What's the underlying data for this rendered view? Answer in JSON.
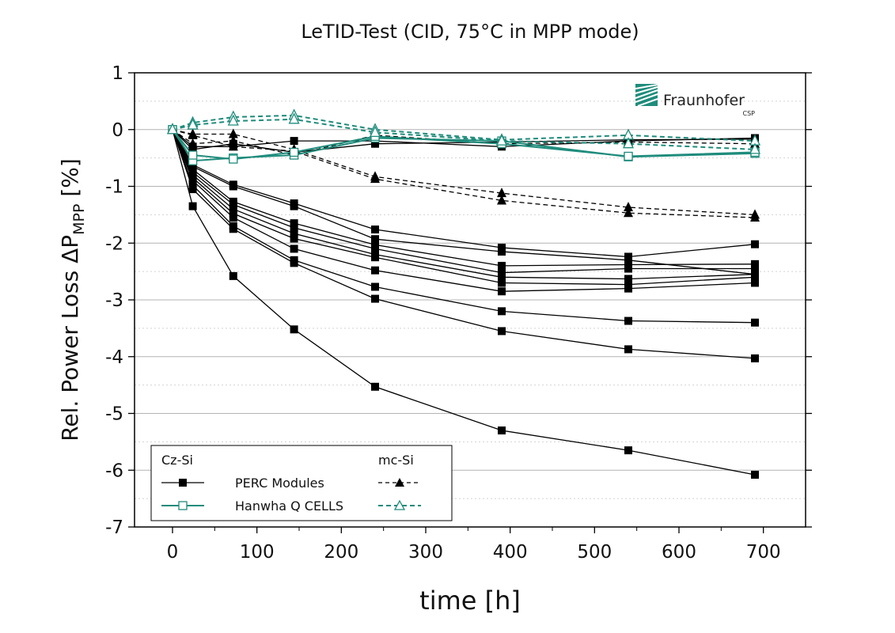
{
  "colors": {
    "black": "#000000",
    "teal": "#1f8c7c",
    "grid": "#c8c8c8",
    "frame": "#000000"
  },
  "logo": {
    "name": "Fraunhofer",
    "sub": "CSP",
    "icon": "fraunhofer-logo-icon"
  },
  "legend": {
    "header_left": "Cz-Si",
    "header_right": "mc-Si",
    "row1_label": "PERC Modules",
    "row2_label": "Hanwha Q CELLS"
  },
  "chart_data": {
    "type": "line",
    "title": "LeTID-Test (CID, 75°C in MPP mode)",
    "xlabel": "time [h]",
    "ylabel": {
      "main": "Rel. Power Loss ΔP",
      "subscript": "MPP",
      "unit": " [%]"
    },
    "xlim": [
      -45,
      750
    ],
    "ylim": [
      -7,
      1
    ],
    "xticks": [
      0,
      100,
      200,
      300,
      400,
      500,
      600,
      700
    ],
    "yticks": [
      1,
      0,
      -1,
      -2,
      -3,
      -4,
      -5,
      -6,
      -7
    ],
    "grid": true,
    "legend_position": "bottom-left",
    "series": [
      {
        "group": "PERC Cz-Si",
        "color": "#000000",
        "dash": false,
        "marker": "square-filled",
        "x": [
          0,
          24,
          72,
          144,
          240,
          390,
          540,
          690
        ],
        "y": [
          0,
          -1.35,
          -2.58,
          -3.52,
          -4.53,
          -5.3,
          -5.65,
          -6.08
        ]
      },
      {
        "group": "PERC Cz-Si",
        "color": "#000000",
        "dash": false,
        "marker": "square-filled",
        "x": [
          0,
          24,
          72,
          144,
          240,
          390,
          540,
          690
        ],
        "y": [
          0,
          -1.05,
          -1.75,
          -2.35,
          -2.98,
          -3.55,
          -3.87,
          -4.03
        ]
      },
      {
        "group": "PERC Cz-Si",
        "color": "#000000",
        "dash": false,
        "marker": "square-filled",
        "x": [
          0,
          24,
          72,
          144,
          240,
          390,
          540,
          690
        ],
        "y": [
          0,
          -0.98,
          -1.7,
          -2.3,
          -2.77,
          -3.2,
          -3.37,
          -3.4
        ]
      },
      {
        "group": "PERC Cz-Si",
        "color": "#000000",
        "dash": false,
        "marker": "square-filled",
        "x": [
          0,
          24,
          72,
          144,
          240,
          390,
          540,
          690
        ],
        "y": [
          0,
          -0.9,
          -1.55,
          -2.1,
          -2.48,
          -2.85,
          -2.8,
          -2.7
        ]
      },
      {
        "group": "PERC Cz-Si",
        "color": "#000000",
        "dash": false,
        "marker": "square-filled",
        "x": [
          0,
          24,
          72,
          144,
          240,
          390,
          540,
          690
        ],
        "y": [
          0,
          -0.85,
          -1.48,
          -1.92,
          -2.25,
          -2.7,
          -2.73,
          -2.6
        ]
      },
      {
        "group": "PERC Cz-Si",
        "color": "#000000",
        "dash": false,
        "marker": "square-filled",
        "x": [
          0,
          24,
          72,
          144,
          240,
          390,
          540,
          690
        ],
        "y": [
          0,
          -0.8,
          -1.4,
          -1.83,
          -2.2,
          -2.6,
          -2.63,
          -2.55
        ]
      },
      {
        "group": "PERC Cz-Si",
        "color": "#000000",
        "dash": false,
        "marker": "square-filled",
        "x": [
          0,
          24,
          72,
          144,
          240,
          390,
          540,
          690
        ],
        "y": [
          0,
          -0.75,
          -1.32,
          -1.73,
          -2.1,
          -2.52,
          -2.45,
          -2.45
        ]
      },
      {
        "group": "PERC Cz-Si",
        "color": "#000000",
        "dash": false,
        "marker": "square-filled",
        "x": [
          0,
          24,
          72,
          144,
          240,
          390,
          540,
          690
        ],
        "y": [
          0,
          -0.7,
          -1.27,
          -1.65,
          -2.03,
          -2.4,
          -2.38,
          -2.37
        ]
      },
      {
        "group": "PERC Cz-Si",
        "color": "#000000",
        "dash": false,
        "marker": "square-filled",
        "x": [
          0,
          24,
          72,
          144,
          240,
          390,
          540,
          690
        ],
        "y": [
          0,
          -0.65,
          -1.0,
          -1.35,
          -1.93,
          -2.15,
          -2.3,
          -2.55
        ]
      },
      {
        "group": "PERC Cz-Si",
        "color": "#000000",
        "dash": false,
        "marker": "square-filled",
        "x": [
          0,
          24,
          72,
          144,
          240,
          390,
          540,
          690
        ],
        "y": [
          0,
          -0.62,
          -0.97,
          -1.3,
          -1.76,
          -2.08,
          -2.24,
          -2.02
        ]
      },
      {
        "group": "PERC Cz-Si",
        "color": "#000000",
        "dash": false,
        "marker": "square-filled",
        "x": [
          0,
          24,
          72,
          144,
          240,
          390,
          540,
          690
        ],
        "y": [
          0,
          -0.3,
          -0.3,
          -0.2,
          -0.2,
          -0.3,
          -0.2,
          -0.15
        ]
      },
      {
        "group": "PERC Cz-Si",
        "color": "#000000",
        "dash": false,
        "marker": "square-filled",
        "x": [
          0,
          24,
          72,
          144,
          240,
          390,
          540,
          690
        ],
        "y": [
          0,
          -0.35,
          -0.25,
          -0.4,
          -0.25,
          -0.22,
          -0.18,
          -0.17
        ]
      },
      {
        "group": "PERC mc-Si",
        "color": "#000000",
        "dash": true,
        "marker": "triangle-filled",
        "x": [
          0,
          24,
          72,
          144,
          240,
          390,
          540,
          690
        ],
        "y": [
          0,
          -0.08,
          -0.08,
          -0.35,
          -0.83,
          -1.12,
          -1.37,
          -1.5
        ]
      },
      {
        "group": "PERC mc-Si",
        "color": "#000000",
        "dash": true,
        "marker": "triangle-filled",
        "x": [
          0,
          24,
          72,
          144,
          240,
          390,
          540,
          690
        ],
        "y": [
          0,
          -0.1,
          -0.3,
          -0.38,
          -0.87,
          -1.25,
          -1.47,
          -1.55
        ]
      },
      {
        "group": "PERC mc-Si",
        "color": "#000000",
        "dash": true,
        "marker": "triangle-filled",
        "x": [
          0,
          24,
          72,
          144,
          240,
          390,
          540,
          690
        ],
        "y": [
          0,
          -0.25,
          -0.2,
          -0.45,
          -0.1,
          -0.25,
          -0.22,
          -0.25
        ]
      },
      {
        "group": "Hanwha Q CELLS Cz-Si",
        "color": "#1f8c7c",
        "dash": false,
        "marker": "square-open",
        "x": [
          0,
          24,
          72,
          144,
          240,
          390,
          540,
          690
        ],
        "y": [
          0,
          -0.55,
          -0.5,
          -0.45,
          -0.15,
          -0.2,
          -0.48,
          -0.42
        ]
      },
      {
        "group": "Hanwha Q CELLS Cz-Si",
        "color": "#1f8c7c",
        "dash": false,
        "marker": "square-open",
        "x": [
          0,
          24,
          72,
          144,
          240,
          390,
          540,
          690
        ],
        "y": [
          0,
          -0.45,
          -0.52,
          -0.4,
          -0.12,
          -0.25,
          -0.47,
          -0.4
        ]
      },
      {
        "group": "Hanwha Q CELLS mc-Si",
        "color": "#1f8c7c",
        "dash": true,
        "marker": "triangle-open",
        "x": [
          0,
          24,
          72,
          144,
          240,
          390,
          540,
          690
        ],
        "y": [
          0,
          0.12,
          0.22,
          0.25,
          0.0,
          -0.18,
          -0.1,
          -0.2
        ]
      },
      {
        "group": "Hanwha Q CELLS mc-Si",
        "color": "#1f8c7c",
        "dash": true,
        "marker": "triangle-open",
        "x": [
          0,
          24,
          72,
          144,
          240,
          390,
          540,
          690
        ],
        "y": [
          0,
          0.08,
          0.15,
          0.18,
          -0.05,
          -0.2,
          -0.25,
          -0.35
        ]
      }
    ]
  }
}
